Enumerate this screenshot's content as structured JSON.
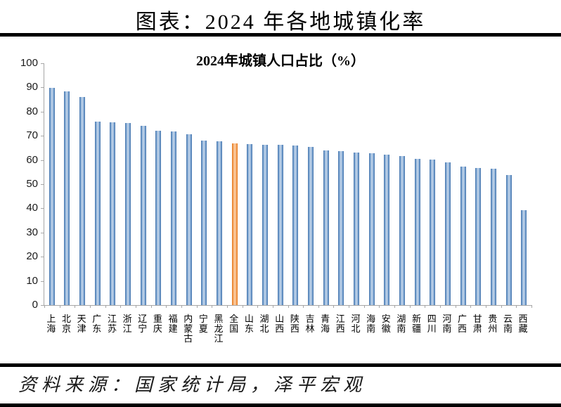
{
  "page": {
    "title": "图表：2024 年各地城镇化率",
    "source": "资料来源：国家统计局，泽平宏观"
  },
  "chart_data": {
    "type": "bar",
    "title": "2024年城镇人口占比（%）",
    "categories": [
      "上海",
      "北京",
      "天津",
      "广东",
      "江苏",
      "浙江",
      "辽宁",
      "重庆",
      "福建",
      "内蒙古",
      "宁夏",
      "黑龙江",
      "全国",
      "山东",
      "湖北",
      "山西",
      "陕西",
      "吉林",
      "青海",
      "江西",
      "河北",
      "海南",
      "安徽",
      "湖南",
      "新疆",
      "四川",
      "河南",
      "广西",
      "甘肃",
      "贵州",
      "云南",
      "西藏"
    ],
    "values": [
      89.9,
      88.3,
      86.1,
      75.9,
      75.5,
      75.2,
      74.2,
      72.2,
      71.8,
      70.7,
      68.1,
      67.8,
      67.0,
      66.5,
      66.3,
      66.2,
      65.9,
      65.4,
      64.0,
      63.8,
      63.2,
      62.7,
      62.1,
      61.5,
      60.4,
      60.1,
      59.0,
      57.2,
      56.6,
      56.3,
      53.9,
      39.3
    ],
    "highlight_category": "全国",
    "highlight_index": 12,
    "ylim": [
      0,
      100
    ],
    "yticks": [
      0,
      10,
      20,
      30,
      40,
      50,
      60,
      70,
      80,
      90,
      100
    ],
    "xlabel": "",
    "ylabel": "",
    "grid": "off",
    "legend": "none",
    "bar_color": "#4f81bd",
    "highlight_color": "#f79646",
    "axis_color": "#a6a6a6"
  }
}
